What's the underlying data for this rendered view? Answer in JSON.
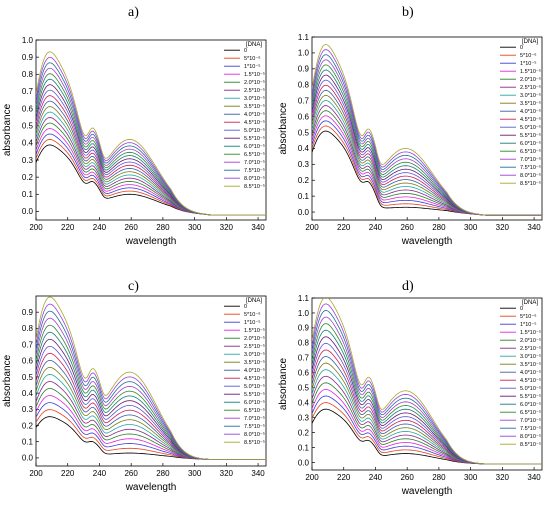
{
  "chart_data": [
    {
      "panel": "a)",
      "type": "line",
      "xlabel": "wavelength",
      "ylabel": "absorbance",
      "xlim": [
        200,
        345
      ],
      "ylim": [
        -0.05,
        1.0
      ],
      "xticks": [
        "200",
        "220",
        "240",
        "260",
        "280",
        "300",
        "320",
        "340"
      ],
      "yticks": [
        "0.0",
        "0.1",
        "0.2",
        "0.3",
        "0.4",
        "0.5",
        "0.6",
        "0.7",
        "0.8",
        "0.9",
        "1.0"
      ],
      "legend_title": "[DNA]",
      "legend_position": "top-right",
      "series_labels": [
        "0",
        "5*10⁻⁶",
        "1*10⁻⁵",
        "1.5*10⁻⁵",
        "2.0*10⁻⁵",
        "2.5*10⁻⁵",
        "3.0*10⁻⁵",
        "3.5*10⁻⁵",
        "4.0*10⁻⁵",
        "4.5*10⁻⁵",
        "5.0*10⁻⁵",
        "5.5*10⁻⁵",
        "6.0*10⁻⁵",
        "6.5*10⁻⁵",
        "7.0*10⁻⁵",
        "7.5*10⁻⁵",
        "8.0*10⁻⁵",
        "8.5*10⁻⁵"
      ],
      "peak200": [
        0.38,
        0.91
      ],
      "peak260": [
        0.1,
        0.42
      ],
      "tail": -0.02
    },
    {
      "panel": "b)",
      "type": "line",
      "xlabel": "wavelength",
      "ylabel": "absorbance",
      "xlim": [
        200,
        345
      ],
      "ylim": [
        -0.05,
        1.1
      ],
      "xticks": [
        "200",
        "220",
        "240",
        "260",
        "280",
        "300",
        "320",
        "340"
      ],
      "yticks": [
        "0.0",
        "0.1",
        "0.2",
        "0.3",
        "0.4",
        "0.5",
        "0.6",
        "0.7",
        "0.8",
        "0.9",
        "1.0",
        "1.1"
      ],
      "legend_title": "[DNA]",
      "legend_position": "top-right",
      "series_labels": [
        "0",
        "5*10⁻⁶",
        "1*10⁻⁵",
        "1.5*10⁻⁵",
        "2.0*10⁻⁵",
        "2.5*10⁻⁵",
        "3.0*10⁻⁵",
        "3.5*10⁻⁵",
        "4.0*10⁻⁵",
        "4.5*10⁻⁵",
        "5.0*10⁻⁵",
        "5.5*10⁻⁵",
        "6.0*10⁻⁵",
        "6.5*10⁻⁵",
        "7.0*10⁻⁵",
        "7.5*10⁻⁵",
        "8.0*10⁻⁵",
        "8.5*10⁻⁵"
      ],
      "peak200": [
        0.5,
        1.03
      ],
      "peak260": [
        0.03,
        0.4
      ],
      "tail": -0.02
    },
    {
      "panel": "c)",
      "type": "line",
      "xlabel": "wavelength",
      "ylabel": "absorbance",
      "xlim": [
        200,
        345
      ],
      "ylim": [
        -0.05,
        1.0
      ],
      "xticks": [
        "200",
        "220",
        "240",
        "260",
        "280",
        "300",
        "320",
        "340"
      ],
      "yticks": [
        "0.0",
        "0.1",
        "0.2",
        "0.3",
        "0.4",
        "0.5",
        "0.6",
        "0.7",
        "0.8",
        "0.9"
      ],
      "legend_title": "[DNA]",
      "legend_position": "top-right",
      "series_labels": [
        "0",
        "5*10⁻⁶",
        "1*10⁻⁵",
        "1.5*10⁻⁵",
        "2.0*10⁻⁵",
        "2.5*10⁻⁵",
        "3.0*10⁻⁵",
        "3.5*10⁻⁵",
        "4.0*10⁻⁵",
        "4.5*10⁻⁵",
        "5.0*10⁻⁵",
        "5.5*10⁻⁵",
        "6.0*10⁻⁵",
        "6.5*10⁻⁵",
        "7.0*10⁻⁵",
        "7.5*10⁻⁵",
        "8.0*10⁻⁵",
        "8.5*10⁻⁵"
      ],
      "peak200": [
        0.25,
        0.97
      ],
      "peak260": [
        0.03,
        0.53
      ],
      "tail": -0.01
    },
    {
      "panel": "d)",
      "type": "line",
      "xlabel": "wavelength",
      "ylabel": "absorbance",
      "xlim": [
        200,
        345
      ],
      "ylim": [
        -0.05,
        1.1
      ],
      "xticks": [
        "200",
        "220",
        "240",
        "260",
        "280",
        "300",
        "320",
        "340"
      ],
      "yticks": [
        "0.0",
        "0.1",
        "0.2",
        "0.3",
        "0.4",
        "0.5",
        "0.6",
        "0.7",
        "0.8",
        "0.9",
        "1.0",
        "1.1"
      ],
      "legend_title": "[DNA]",
      "legend_position": "top-right",
      "series_labels": [
        "0",
        "5*10⁻⁶",
        "1*10⁻⁵",
        "1.5*10⁻⁵",
        "2.0*10⁻⁵",
        "2.5*10⁻⁵",
        "3.0*10⁻⁵",
        "3.5*10⁻⁵",
        "4.0*10⁻⁵",
        "4.5*10⁻⁵",
        "5.0*10⁻⁵",
        "5.5*10⁻⁵",
        "6.0*10⁻⁵",
        "6.5*10⁻⁵",
        "7.0*10⁻⁵",
        "7.5*10⁻⁵",
        "8.0*10⁻⁵",
        "8.5*10⁻⁵"
      ],
      "peak200": [
        0.35,
        1.08
      ],
      "peak260": [
        0.06,
        0.48
      ],
      "tail": -0.01
    }
  ],
  "series_colors": [
    "#000000",
    "#e8431d",
    "#3f3fd6",
    "#e025e0",
    "#2d7f2d",
    "#8a2a8a",
    "#2aa6a6",
    "#7d7d18",
    "#3a5fa8",
    "#cc1f5a",
    "#5a5ad6",
    "#6b1a6b",
    "#1a7d7d",
    "#2d8a2d",
    "#a33fd1",
    "#1f6f9a",
    "#9a3fe0",
    "#a8a82d"
  ]
}
